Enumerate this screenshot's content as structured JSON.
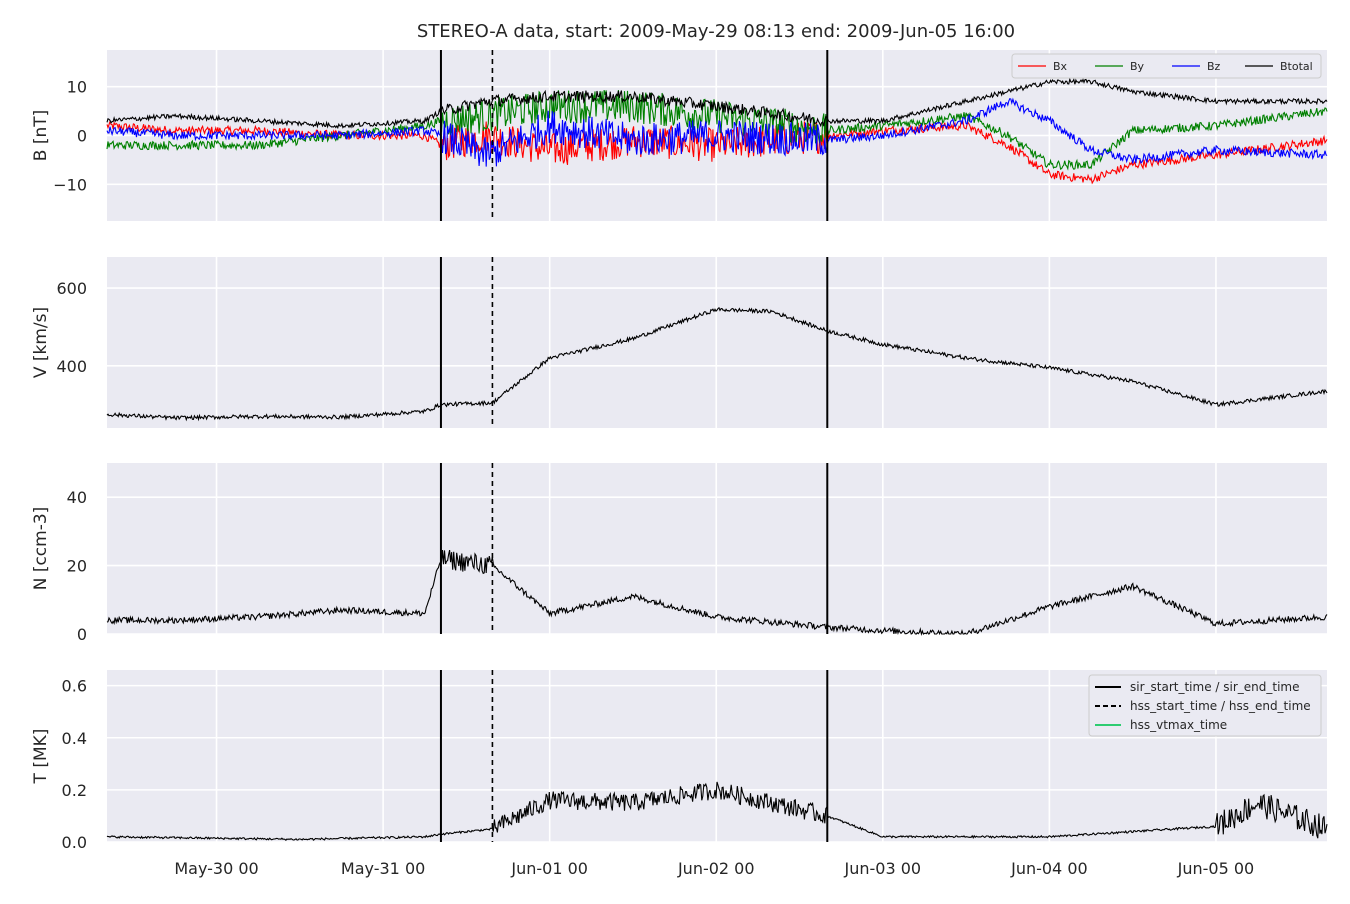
{
  "title": "STEREO-A data, start: 2009-May-29 08:13  end: 2009-Jun-05 16:00",
  "colors": {
    "panel_bg": "#eaeaf2",
    "grid": "#ffffff",
    "bx": "#ff0000",
    "by": "#008000",
    "bz": "#0000ff",
    "btotal": "#000000",
    "vtmax": "#2ecc71"
  },
  "x_axis": {
    "start": "2009-05-29 08:13",
    "end": "2009-06-05 16:00",
    "ticks": [
      {
        "t": "2009-05-30 00:00",
        "label": "May-30 00"
      },
      {
        "t": "2009-05-31 00:00",
        "label": "May-31 00"
      },
      {
        "t": "2009-06-01 00:00",
        "label": "Jun-01 00"
      },
      {
        "t": "2009-06-02 00:00",
        "label": "Jun-02 00"
      },
      {
        "t": "2009-06-03 00:00",
        "label": "Jun-03 00"
      },
      {
        "t": "2009-06-04 00:00",
        "label": "Jun-04 00"
      },
      {
        "t": "2009-06-05 00:00",
        "label": "Jun-05 00"
      }
    ]
  },
  "events": {
    "sir_start_time": "2009-05-31 08:20",
    "hss_start_time": "2009-05-31 15:45",
    "sir_end_time": "2009-06-02 16:00"
  },
  "legends": {
    "b": [
      "Bx",
      "By",
      "Bz",
      "Btotal"
    ],
    "events": [
      "sir_start_time / sir_end_time",
      "hss_start_time / hss_end_time",
      "hss_vtmax_time"
    ]
  },
  "chart_data": [
    {
      "type": "line",
      "ylabel": "B [nT]",
      "ylim": [
        -17.5,
        17.5
      ],
      "yticks": [
        {
          "v": -10,
          "label": "−10"
        },
        {
          "v": 0,
          "label": "0"
        },
        {
          "v": 10,
          "label": "10"
        }
      ],
      "legend": "top-right",
      "series": [
        {
          "name": "Bx",
          "color": "#ff0000",
          "points": [
            [
              "2009-05-29 08:13",
              2
            ],
            [
              "2009-05-29 18:00",
              1
            ],
            [
              "2009-05-30 06:00",
              1
            ],
            [
              "2009-05-30 18:00",
              0
            ],
            [
              "2009-05-31 06:00",
              0
            ],
            [
              "2009-05-31 08:20",
              -2
            ],
            [
              "2009-05-31 15:00",
              0
            ],
            [
              "2009-06-01 00:00",
              -3
            ],
            [
              "2009-06-01 12:00",
              -1
            ],
            [
              "2009-06-02 00:00",
              -2
            ],
            [
              "2009-06-02 16:00",
              0
            ],
            [
              "2009-06-03 00:00",
              1
            ],
            [
              "2009-06-03 12:00",
              2
            ],
            [
              "2009-06-03 18:00",
              -2
            ],
            [
              "2009-06-04 00:00",
              -8
            ],
            [
              "2009-06-04 06:00",
              -9
            ],
            [
              "2009-06-04 12:00",
              -6
            ],
            [
              "2009-06-05 00:00",
              -4
            ],
            [
              "2009-06-05 16:00",
              -1
            ]
          ]
        },
        {
          "name": "By",
          "color": "#008000",
          "points": [
            [
              "2009-05-29 08:13",
              -2
            ],
            [
              "2009-05-29 18:00",
              -2
            ],
            [
              "2009-05-30 06:00",
              -2
            ],
            [
              "2009-05-30 18:00",
              0
            ],
            [
              "2009-05-31 06:00",
              2
            ],
            [
              "2009-05-31 08:20",
              3
            ],
            [
              "2009-05-31 15:00",
              4
            ],
            [
              "2009-06-01 00:00",
              6
            ],
            [
              "2009-06-01 12:00",
              6
            ],
            [
              "2009-06-02 00:00",
              4
            ],
            [
              "2009-06-02 16:00",
              1
            ],
            [
              "2009-06-03 00:00",
              2
            ],
            [
              "2009-06-03 12:00",
              4
            ],
            [
              "2009-06-03 18:00",
              0
            ],
            [
              "2009-06-04 00:00",
              -6
            ],
            [
              "2009-06-04 06:00",
              -6
            ],
            [
              "2009-06-04 12:00",
              1
            ],
            [
              "2009-06-05 00:00",
              2
            ],
            [
              "2009-06-05 16:00",
              5
            ]
          ]
        },
        {
          "name": "Bz",
          "color": "#0000ff",
          "points": [
            [
              "2009-05-29 08:13",
              1
            ],
            [
              "2009-05-29 18:00",
              0
            ],
            [
              "2009-05-30 06:00",
              0
            ],
            [
              "2009-05-30 18:00",
              0
            ],
            [
              "2009-05-31 06:00",
              1
            ],
            [
              "2009-05-31 08:20",
              0
            ],
            [
              "2009-05-31 15:00",
              -4
            ],
            [
              "2009-06-01 00:00",
              2
            ],
            [
              "2009-06-01 12:00",
              -1
            ],
            [
              "2009-06-02 00:00",
              0
            ],
            [
              "2009-06-02 16:00",
              -1
            ],
            [
              "2009-06-03 00:00",
              0
            ],
            [
              "2009-06-03 12:00",
              3
            ],
            [
              "2009-06-03 18:00",
              7
            ],
            [
              "2009-06-04 00:00",
              3
            ],
            [
              "2009-06-04 06:00",
              -3
            ],
            [
              "2009-06-04 12:00",
              -5
            ],
            [
              "2009-06-05 00:00",
              -3
            ],
            [
              "2009-06-05 16:00",
              -4
            ]
          ]
        },
        {
          "name": "Btotal",
          "color": "#000000",
          "points": [
            [
              "2009-05-29 08:13",
              3
            ],
            [
              "2009-05-29 18:00",
              4
            ],
            [
              "2009-05-30 06:00",
              3
            ],
            [
              "2009-05-30 18:00",
              2
            ],
            [
              "2009-05-31 06:00",
              3
            ],
            [
              "2009-05-31 08:20",
              5
            ],
            [
              "2009-05-31 15:00",
              7
            ],
            [
              "2009-06-01 00:00",
              8
            ],
            [
              "2009-06-01 12:00",
              8
            ],
            [
              "2009-06-02 00:00",
              6
            ],
            [
              "2009-06-02 16:00",
              3
            ],
            [
              "2009-06-03 00:00",
              3
            ],
            [
              "2009-06-03 12:00",
              7
            ],
            [
              "2009-06-03 18:00",
              9
            ],
            [
              "2009-06-04 00:00",
              11
            ],
            [
              "2009-06-04 06:00",
              11
            ],
            [
              "2009-06-04 12:00",
              9
            ],
            [
              "2009-06-05 00:00",
              7
            ],
            [
              "2009-06-05 16:00",
              7
            ]
          ]
        }
      ]
    },
    {
      "type": "line",
      "ylabel": "V [km/s]",
      "ylim": [
        240,
        680
      ],
      "yticks": [
        {
          "v": 400,
          "label": "400"
        },
        {
          "v": 600,
          "label": "600"
        }
      ],
      "series": [
        {
          "color": "#000000",
          "points": [
            [
              "2009-05-29 08:13",
              275
            ],
            [
              "2009-05-29 18:00",
              266
            ],
            [
              "2009-05-30 06:00",
              270
            ],
            [
              "2009-05-30 18:00",
              268
            ],
            [
              "2009-05-31 06:00",
              283
            ],
            [
              "2009-05-31 08:20",
              300
            ],
            [
              "2009-05-31 15:45",
              305
            ],
            [
              "2009-06-01 00:00",
              420
            ],
            [
              "2009-06-01 12:00",
              470
            ],
            [
              "2009-06-02 00:00",
              545
            ],
            [
              "2009-06-02 08:00",
              540
            ],
            [
              "2009-06-02 16:00",
              490
            ],
            [
              "2009-06-03 00:00",
              455
            ],
            [
              "2009-06-03 12:00",
              420
            ],
            [
              "2009-06-04 00:00",
              395
            ],
            [
              "2009-06-04 12:00",
              360
            ],
            [
              "2009-06-05 00:00",
              300
            ],
            [
              "2009-06-05 16:00",
              335
            ]
          ]
        }
      ]
    },
    {
      "type": "line",
      "ylabel": "N [ccm-3]",
      "ylim": [
        0,
        50
      ],
      "yticks": [
        {
          "v": 0,
          "label": "0"
        },
        {
          "v": 20,
          "label": "20"
        },
        {
          "v": 40,
          "label": "40"
        }
      ],
      "series": [
        {
          "color": "#000000",
          "points": [
            [
              "2009-05-29 08:13",
              4
            ],
            [
              "2009-05-29 18:00",
              4
            ],
            [
              "2009-05-30 06:00",
              5
            ],
            [
              "2009-05-30 18:00",
              7
            ],
            [
              "2009-05-31 06:00",
              6
            ],
            [
              "2009-05-31 08:20",
              22
            ],
            [
              "2009-05-31 15:45",
              20
            ],
            [
              "2009-06-01 00:00",
              6
            ],
            [
              "2009-06-01 12:00",
              11
            ],
            [
              "2009-06-02 00:00",
              5
            ],
            [
              "2009-06-02 16:00",
              2
            ],
            [
              "2009-06-03 00:00",
              1
            ],
            [
              "2009-06-03 12:00",
              0
            ],
            [
              "2009-06-04 00:00",
              8
            ],
            [
              "2009-06-04 12:00",
              14
            ],
            [
              "2009-06-05 00:00",
              3
            ],
            [
              "2009-06-05 16:00",
              5
            ]
          ]
        }
      ]
    },
    {
      "type": "line",
      "ylabel": "T [MK]",
      "ylim": [
        0,
        0.66
      ],
      "yticks": [
        {
          "v": 0,
          "label": "0.0"
        },
        {
          "v": 0.2,
          "label": "0.2"
        },
        {
          "v": 0.4,
          "label": "0.4"
        },
        {
          "v": 0.6,
          "label": "0.6"
        }
      ],
      "legend": "top-right",
      "series": [
        {
          "color": "#000000",
          "points": [
            [
              "2009-05-29 08:13",
              0.02
            ],
            [
              "2009-05-30 12:00",
              0.01
            ],
            [
              "2009-05-31 06:00",
              0.02
            ],
            [
              "2009-05-31 08:20",
              0.03
            ],
            [
              "2009-05-31 15:45",
              0.05
            ],
            [
              "2009-06-01 00:00",
              0.16
            ],
            [
              "2009-06-01 12:00",
              0.15
            ],
            [
              "2009-06-02 00:00",
              0.2
            ],
            [
              "2009-06-02 16:00",
              0.1
            ],
            [
              "2009-06-03 00:00",
              0.02
            ],
            [
              "2009-06-04 00:00",
              0.02
            ],
            [
              "2009-06-05 00:00",
              0.06
            ],
            [
              "2009-06-05 06:00",
              0.15
            ],
            [
              "2009-06-05 16:00",
              0.05
            ]
          ]
        }
      ]
    }
  ]
}
